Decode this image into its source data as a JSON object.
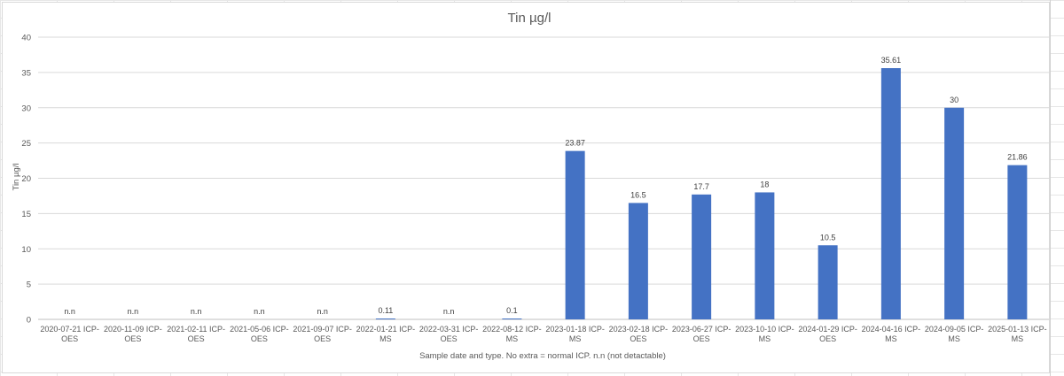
{
  "chart_data": {
    "type": "bar",
    "title": "Tin  µg/l",
    "ylabel": "Tin  µg/l",
    "xlabel": "Sample date and type. No extra = normal ICP.  n.n (not detactable)",
    "ylim": [
      0,
      40
    ],
    "yticks": [
      0,
      5,
      10,
      15,
      20,
      25,
      30,
      35,
      40
    ],
    "grid": true,
    "legend": "none",
    "bar_color": "#4472C4",
    "categories": [
      [
        "2020-07-21 ICP-",
        "OES"
      ],
      [
        "2020-11-09 ICP-",
        "OES"
      ],
      [
        "2021-02-11  ICP-",
        "OES"
      ],
      [
        "2021-05-06 ICP-",
        "OES"
      ],
      [
        "2021-09-07  ICP-",
        "OES"
      ],
      [
        "2022-01-21 ICP-",
        "MS"
      ],
      [
        "2022-03-31  ICP-",
        "OES"
      ],
      [
        "2022-08-12 ICP-",
        "MS"
      ],
      [
        "2023-01-18 ICP-",
        "MS"
      ],
      [
        "2023-02-18  ICP-",
        "OES"
      ],
      [
        "2023-06-27  ICP-",
        "OES"
      ],
      [
        "2023-10-10 ICP-",
        "MS"
      ],
      [
        "2024-01-29  ICP-",
        "OES"
      ],
      [
        "2024-04-16 ICP-",
        "MS"
      ],
      [
        "2024-09-05 ICP-",
        "MS"
      ],
      [
        "2025-01-13 ICP-",
        "MS"
      ]
    ],
    "values": [
      0,
      0,
      0,
      0,
      0,
      0.11,
      0,
      0.1,
      23.87,
      16.5,
      17.7,
      18,
      10.5,
      35.61,
      30,
      21.86
    ],
    "data_labels": [
      "n.n",
      "n.n",
      "n.n",
      "n.n",
      "n.n",
      "0.11",
      "n.n",
      "0.1",
      "23.87",
      "16.5",
      "17.7",
      "18",
      "10.5",
      "35.61",
      "30",
      "21.86"
    ]
  }
}
